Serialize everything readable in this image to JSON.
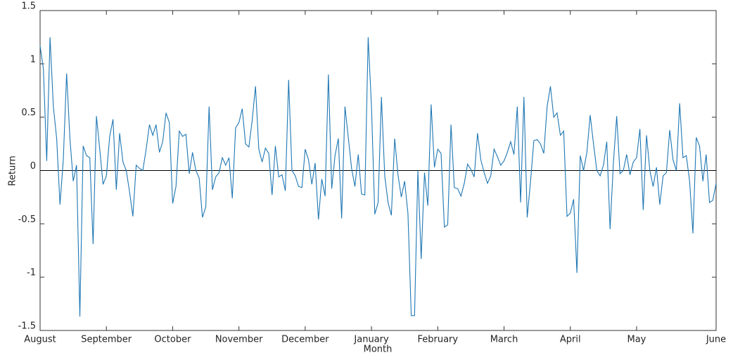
{
  "chart_data": {
    "type": "line",
    "xlabel": "Month",
    "ylabel": "Return",
    "x": [
      0,
      1,
      2,
      3,
      4,
      5,
      6,
      7,
      8,
      9,
      10,
      11,
      12,
      13,
      14,
      15,
      16,
      17,
      18,
      19,
      20,
      21,
      22,
      23,
      24,
      25,
      26,
      27,
      28,
      29,
      30,
      31,
      32,
      33,
      34,
      35,
      36,
      37,
      38,
      39,
      40,
      41,
      42,
      43,
      44,
      45,
      46,
      47,
      48,
      49,
      50,
      51,
      52,
      53,
      54,
      55,
      56,
      57,
      58,
      59,
      60,
      61,
      62,
      63,
      64,
      65,
      66,
      67,
      68,
      69,
      70,
      71,
      72,
      73,
      74,
      75,
      76,
      77,
      78,
      79,
      80,
      81,
      82,
      83,
      84,
      85,
      86,
      87,
      88,
      89,
      90,
      91,
      92,
      93,
      94,
      95,
      96,
      97,
      98,
      99,
      100,
      101,
      102,
      103,
      104,
      105,
      106,
      107,
      108,
      109,
      110,
      111,
      112,
      113,
      114,
      115,
      116,
      117,
      118,
      119,
      120,
      121,
      122,
      123,
      124,
      125,
      126,
      127,
      128,
      129,
      130,
      131,
      132,
      133,
      134,
      135,
      136,
      137,
      138,
      139,
      140,
      141,
      142,
      143,
      144,
      145,
      146,
      147,
      148,
      149,
      150,
      151,
      152,
      153,
      154,
      155,
      156,
      157,
      158,
      159,
      160,
      161,
      162,
      163,
      164,
      165,
      166,
      167,
      168,
      169,
      170,
      171,
      172,
      173,
      174,
      175,
      176,
      177,
      178,
      179,
      180,
      181,
      182,
      183,
      184,
      185,
      186,
      187,
      188,
      189,
      190,
      191,
      192,
      193,
      194,
      195,
      196,
      197,
      198,
      199,
      200,
      201,
      202,
      203,
      204
    ],
    "values": [
      1.17,
      0.95,
      0.09,
      1.25,
      0.6,
      0.3,
      -0.32,
      0.1,
      0.91,
      0.3,
      -0.1,
      0.05,
      -1.37,
      0.23,
      0.14,
      0.12,
      -0.69,
      0.51,
      0.2,
      -0.13,
      -0.05,
      0.32,
      0.48,
      -0.18,
      0.35,
      0.08,
      0.0,
      -0.2,
      -0.43,
      0.05,
      0.02,
      0.0,
      0.2,
      0.43,
      0.33,
      0.43,
      0.17,
      0.27,
      0.54,
      0.45,
      -0.31,
      -0.15,
      0.37,
      0.32,
      0.34,
      -0.03,
      0.17,
      0.0,
      -0.07,
      -0.44,
      -0.34,
      0.6,
      -0.18,
      -0.06,
      -0.02,
      0.12,
      0.05,
      0.12,
      -0.26,
      0.4,
      0.45,
      0.58,
      0.25,
      0.22,
      0.47,
      0.79,
      0.2,
      0.08,
      0.21,
      0.16,
      -0.23,
      0.23,
      -0.06,
      -0.04,
      -0.19,
      0.85,
      0.0,
      -0.05,
      -0.15,
      -0.16,
      0.2,
      0.1,
      -0.13,
      0.07,
      -0.46,
      -0.08,
      -0.24,
      0.9,
      -0.17,
      0.14,
      0.3,
      -0.45,
      0.6,
      0.31,
      0.02,
      -0.15,
      0.15,
      -0.22,
      -0.23,
      1.25,
      0.6,
      -0.41,
      -0.3,
      0.69,
      -0.05,
      -0.3,
      -0.42,
      0.3,
      -0.04,
      -0.25,
      -0.1,
      -0.4,
      -1.36,
      -1.36,
      0.0,
      -0.83,
      -0.02,
      -0.33,
      0.62,
      0.03,
      0.2,
      0.16,
      -0.53,
      -0.51,
      0.43,
      -0.16,
      -0.17,
      -0.24,
      -0.12,
      0.06,
      0.01,
      -0.06,
      0.35,
      0.1,
      -0.02,
      -0.12,
      -0.05,
      0.2,
      0.13,
      0.05,
      0.09,
      0.17,
      0.27,
      0.15,
      0.6,
      -0.3,
      0.69,
      -0.44,
      -0.1,
      0.28,
      0.29,
      0.25,
      0.16,
      0.6,
      0.79,
      0.5,
      0.54,
      0.33,
      0.37,
      -0.43,
      -0.4,
      -0.27,
      -0.96,
      0.14,
      0.0,
      0.17,
      0.52,
      0.25,
      0.0,
      -0.05,
      0.05,
      0.27,
      -0.55,
      0.07,
      0.51,
      -0.03,
      0.0,
      0.15,
      -0.04,
      0.08,
      0.12,
      0.39,
      -0.37,
      0.33,
      0.0,
      -0.15,
      0.03,
      -0.32,
      -0.05,
      -0.02,
      0.38,
      0.1,
      0.0,
      0.63,
      0.12,
      0.14,
      -0.1,
      -0.59,
      0.31,
      0.23,
      -0.1,
      0.15,
      -0.3,
      -0.28,
      -0.12
    ],
    "color": "#1f77b4",
    "xlim": [
      0,
      204
    ],
    "xticks": [
      {
        "value": 0,
        "label": "August"
      },
      {
        "value": 20,
        "label": "September"
      },
      {
        "value": 40,
        "label": "October"
      },
      {
        "value": 60,
        "label": "November"
      },
      {
        "value": 80,
        "label": "December"
      },
      {
        "value": 100,
        "label": "January"
      },
      {
        "value": 120,
        "label": "February"
      },
      {
        "value": 140,
        "label": "March"
      },
      {
        "value": 160,
        "label": "April"
      },
      {
        "value": 180,
        "label": "May"
      },
      {
        "value": 204,
        "label": "June"
      }
    ],
    "ylim": [
      -1.5,
      1.5
    ],
    "yticks": [
      -1.5,
      -1,
      -0.5,
      0,
      0.5,
      1,
      1.5
    ]
  }
}
